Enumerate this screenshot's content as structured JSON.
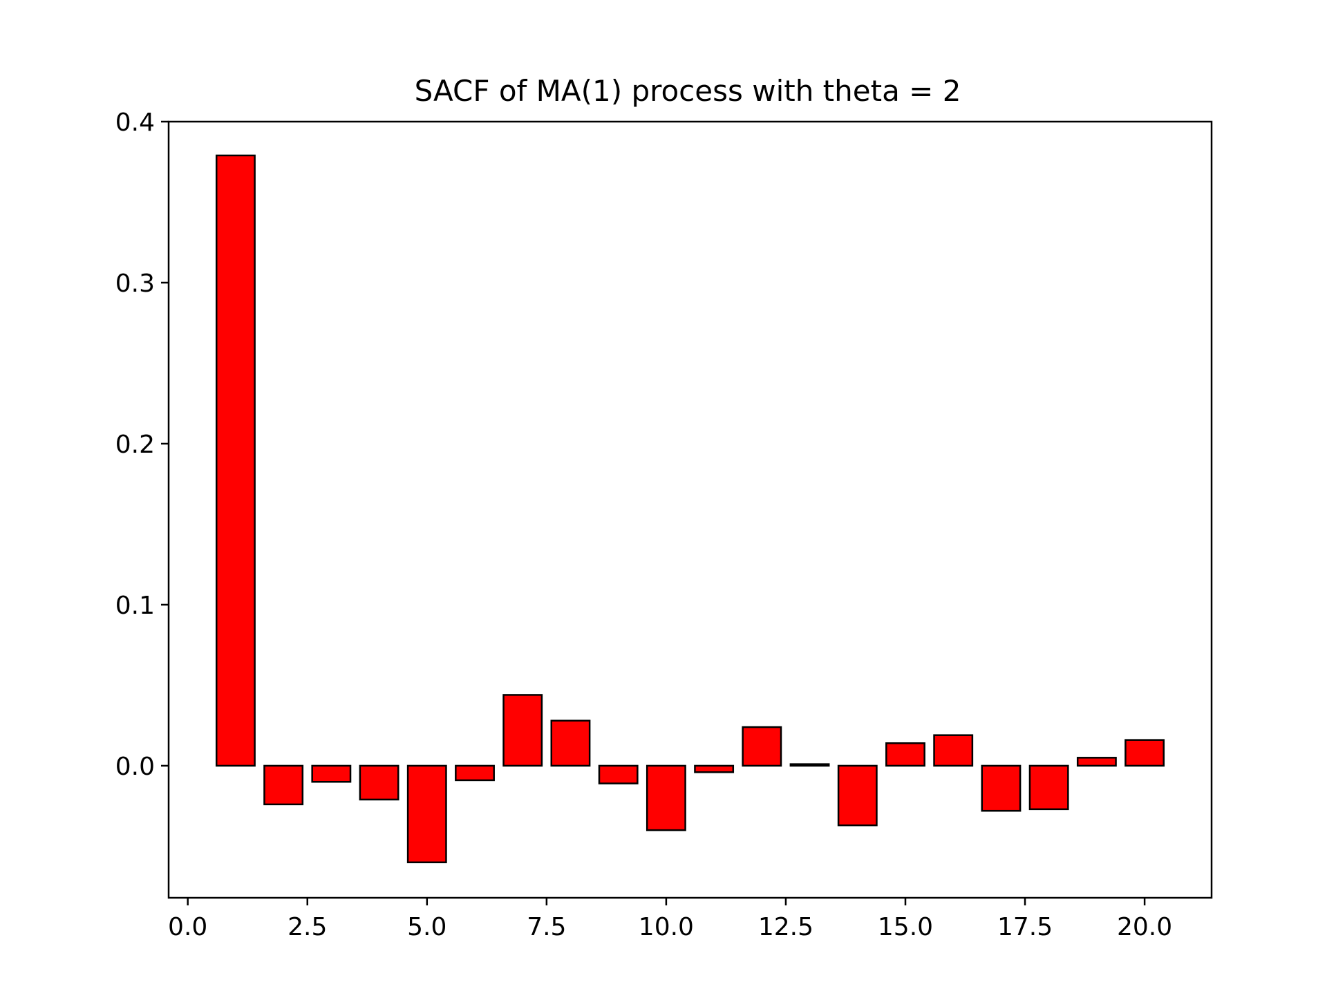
{
  "chart_data": {
    "type": "bar",
    "title": "SACF of MA(1) process with theta = 2",
    "xlabel": "",
    "ylabel": "",
    "x": [
      1,
      2,
      3,
      4,
      5,
      6,
      7,
      8,
      9,
      10,
      11,
      12,
      13,
      14,
      15,
      16,
      17,
      18,
      19,
      20
    ],
    "values": [
      0.379,
      -0.024,
      -0.01,
      -0.021,
      -0.06,
      -0.009,
      0.044,
      0.028,
      -0.011,
      -0.04,
      -0.004,
      0.024,
      0.001,
      -0.037,
      0.014,
      0.019,
      -0.028,
      -0.027,
      0.005,
      0.016
    ],
    "xlim": [
      -0.4,
      21.4
    ],
    "ylim": [
      -0.082,
      0.4
    ],
    "xticks": [
      0.0,
      2.5,
      5.0,
      7.5,
      10.0,
      12.5,
      15.0,
      17.5,
      20.0
    ],
    "xtick_labels": [
      "0.0",
      "2.5",
      "5.0",
      "7.5",
      "10.0",
      "12.5",
      "15.0",
      "17.5",
      "20.0"
    ],
    "yticks": [
      0.0,
      0.1,
      0.2,
      0.3,
      0.4
    ],
    "ytick_labels": [
      "0.0",
      "0.1",
      "0.2",
      "0.3",
      "0.4"
    ],
    "bar_color": "#ff0000",
    "edge_color": "#000000",
    "grid": false,
    "legend": false
  }
}
